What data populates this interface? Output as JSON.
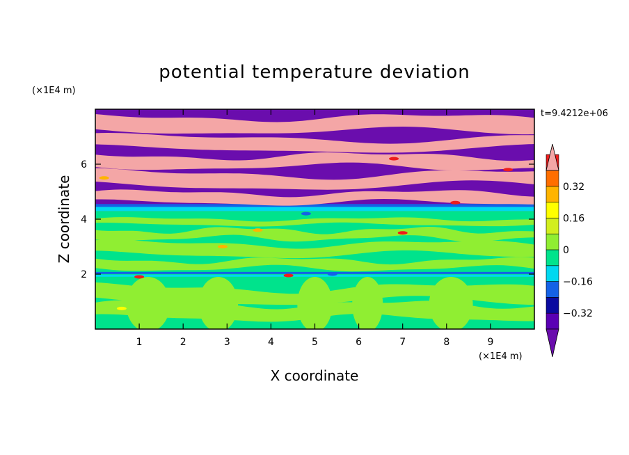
{
  "chart_data": {
    "type": "heatmap",
    "title": "potential temperature deviation",
    "xlabel": "X coordinate",
    "ylabel": "Z coordinate",
    "x_unit": "(×1E4 m)",
    "y_unit": "(×1E4 m)",
    "time_label": "t=9.4212e+06",
    "xlim": [
      0,
      10
    ],
    "ylim": [
      0,
      8
    ],
    "x_ticks": [
      1,
      2,
      3,
      4,
      5,
      6,
      7,
      8,
      9
    ],
    "y_ticks": [
      2,
      4,
      6
    ],
    "colorbar": {
      "levels": [
        -0.48,
        -0.4,
        -0.32,
        -0.24,
        -0.16,
        -0.08,
        0,
        0.08,
        0.16,
        0.24,
        0.32,
        0.4,
        0.48
      ],
      "tick_labels": [
        "0.32",
        "0.16",
        "0",
        "−0.16",
        "−0.32"
      ],
      "tick_values": [
        0.32,
        0.16,
        0,
        -0.16,
        -0.32
      ],
      "colors": [
        "#6a0dad",
        "#5a00b4",
        "#0a0aa0",
        "#1462e6",
        "#00d8f0",
        "#00e38c",
        "#90ee32",
        "#d2ee1e",
        "#ffff00",
        "#ffb400",
        "#ff6e00",
        "#ee1c1c",
        "#f4a6a6"
      ],
      "extend": "both"
    },
    "field_summary": [
      {
        "z_range": [
          0,
          2
        ],
        "description": "green / lime banded field with lime plumes"
      },
      {
        "z_range": [
          1.9,
          2.1
        ],
        "description": "thin blue–cyan layer with red/yellow spots"
      },
      {
        "z_range": [
          2.1,
          4.2
        ],
        "description": "mostly green with lime streaks"
      },
      {
        "z_range": [
          4.2,
          4.4
        ],
        "description": "blue / cyan interface layer"
      },
      {
        "z_range": [
          4.4,
          8
        ],
        "description": "alternating pink (high) and purple (low) horizontal bands"
      }
    ]
  }
}
